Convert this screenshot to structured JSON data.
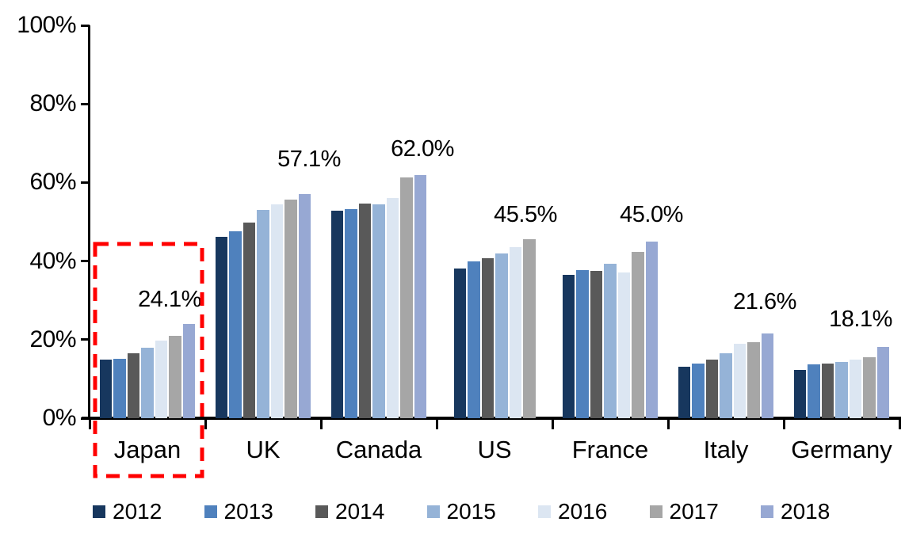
{
  "chart_data": {
    "type": "bar",
    "title": "",
    "description": "Grouped bar chart of percentage share by country and year; Japan group highlighted with red dashed rectangle",
    "categories": [
      "Japan",
      "UK",
      "Canada",
      "US",
      "France",
      "Italy",
      "Germany"
    ],
    "series": [
      {
        "name": "2012",
        "color": "#17375E",
        "values": [
          14.9,
          46.2,
          52.9,
          38.2,
          36.5,
          13.2,
          12.4
        ]
      },
      {
        "name": "2013",
        "color": "#4F81BD",
        "values": [
          15.1,
          47.6,
          53.2,
          39.9,
          37.7,
          13.9,
          13.7
        ]
      },
      {
        "name": "2014",
        "color": "#595959",
        "values": [
          16.6,
          49.8,
          54.7,
          40.8,
          37.6,
          15.0,
          14.0
        ]
      },
      {
        "name": "2015",
        "color": "#95B3D7",
        "values": [
          17.9,
          53.0,
          54.5,
          42.0,
          39.3,
          16.6,
          14.3
        ]
      },
      {
        "name": "2016",
        "color": "#DCE6F2",
        "values": [
          19.7,
          54.5,
          56.0,
          43.5,
          37.2,
          18.9,
          15.0
        ]
      },
      {
        "name": "2017",
        "color": "#A6A6A6",
        "values": [
          21.0,
          55.7,
          61.3,
          45.5,
          42.3,
          19.3,
          15.6
        ]
      },
      {
        "name": "2018",
        "color": "#97A8D3",
        "values": [
          24.1,
          57.1,
          62.0,
          null,
          45.0,
          21.6,
          18.1
        ]
      }
    ],
    "y_axis": {
      "min": 0,
      "max": 100,
      "unit": "%",
      "tick_labels": [
        "100%",
        "80%",
        "60%",
        "40%",
        "20%",
        "0%"
      ]
    },
    "x_axis": {
      "labels": [
        "Japan",
        "UK",
        "Canada",
        "US",
        "France",
        "Italy",
        "Germany"
      ]
    },
    "annotations": [
      {
        "category": "Japan",
        "text": "24.1%"
      },
      {
        "category": "UK",
        "text": "57.1%"
      },
      {
        "category": "Canada",
        "text": "62.0%"
      },
      {
        "category": "US",
        "text": "45.5%"
      },
      {
        "category": "France",
        "text": "45.0%"
      },
      {
        "category": "Italy",
        "text": "21.6%"
      },
      {
        "category": "Germany",
        "text": "18.1%"
      }
    ],
    "highlight": {
      "category": "Japan",
      "shape": "dashed-rectangle",
      "color": "#FF0000"
    },
    "legend": {
      "position": "bottom",
      "items": [
        {
          "label": "2012",
          "color": "#17375E"
        },
        {
          "label": "2013",
          "color": "#4F81BD"
        },
        {
          "label": "2014",
          "color": "#595959"
        },
        {
          "label": "2015",
          "color": "#95B3D7"
        },
        {
          "label": "2016",
          "color": "#DCE6F2"
        },
        {
          "label": "2017",
          "color": "#A6A6A6"
        },
        {
          "label": "2018",
          "color": "#97A8D3"
        }
      ]
    },
    "grid": false
  }
}
